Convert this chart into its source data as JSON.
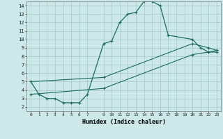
{
  "xlabel": "Humidex (Indice chaleur)",
  "bg_color": "#cce8e8",
  "grid_color": "#aacccc",
  "line_color": "#1a6b5a",
  "xlim": [
    -0.5,
    23.5
  ],
  "ylim": [
    1.5,
    14.5
  ],
  "xticks": [
    0,
    1,
    2,
    3,
    4,
    5,
    6,
    7,
    9,
    10,
    11,
    12,
    13,
    14,
    15,
    16,
    17,
    18,
    19,
    20,
    21,
    22,
    23
  ],
  "yticks": [
    2,
    3,
    4,
    5,
    6,
    7,
    8,
    9,
    10,
    11,
    12,
    13,
    14
  ],
  "curve1_x": [
    0,
    1,
    2,
    3,
    4,
    5,
    6,
    7,
    9,
    10,
    11,
    12,
    13,
    14,
    15,
    16,
    17,
    20,
    21,
    22,
    23
  ],
  "curve1_y": [
    5.0,
    3.5,
    3.0,
    3.0,
    2.5,
    2.5,
    2.5,
    3.5,
    9.5,
    9.8,
    12.0,
    13.0,
    13.2,
    14.5,
    14.5,
    14.0,
    10.5,
    10.0,
    9.0,
    8.5,
    8.5
  ],
  "curve2_x": [
    0,
    9,
    20,
    22,
    23
  ],
  "curve2_y": [
    5.0,
    5.5,
    9.5,
    9.0,
    8.7
  ],
  "curve3_x": [
    0,
    9,
    20,
    22,
    23
  ],
  "curve3_y": [
    3.5,
    4.2,
    8.2,
    8.5,
    8.7
  ]
}
